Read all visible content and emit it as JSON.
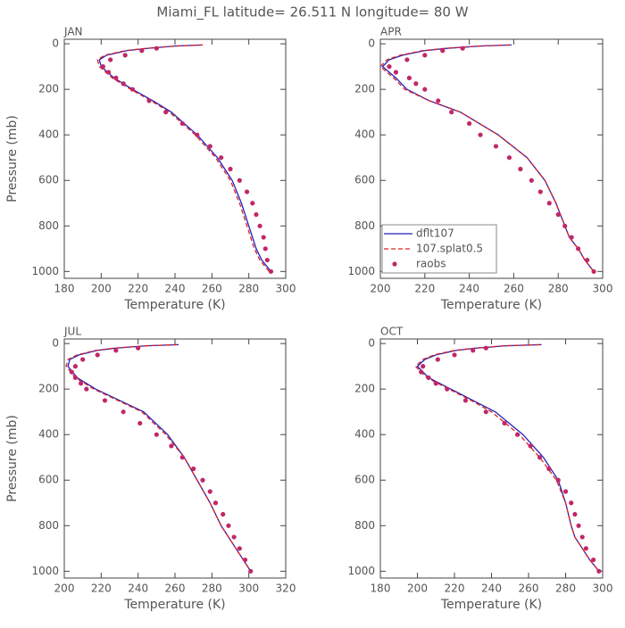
{
  "title": "Miami_FL  latitude= 26.511 N longitude= 80 W",
  "chart_data": [
    {
      "type": "line",
      "title": "JAN",
      "xlabel": "Temperature (K)",
      "ylabel": "Pressure (mb)",
      "xlim": [
        180,
        300
      ],
      "xticks": [
        180,
        200,
        220,
        240,
        260,
        280,
        300
      ],
      "ylim": [
        1030,
        -20
      ],
      "yticks": [
        0,
        200,
        400,
        600,
        800,
        1000
      ],
      "series": [
        {
          "color": "#2222bb",
          "style": "solid",
          "x": [
            255,
            240,
            225,
            214,
            203,
            199,
            200,
            207,
            217,
            228,
            238,
            252,
            263,
            271,
            276,
            280,
            282,
            284,
            287,
            292
          ],
          "values": [
            5,
            10,
            20,
            30,
            50,
            70,
            100,
            150,
            200,
            250,
            300,
            400,
            500,
            600,
            700,
            800,
            850,
            900,
            950,
            1000
          ]
        },
        {
          "color": "#e02020",
          "style": "dashed",
          "x": [
            255,
            240,
            224,
            213,
            202,
            198,
            199,
            206,
            216,
            227,
            237,
            251,
            262,
            270,
            275,
            279,
            281,
            283,
            286,
            291
          ],
          "values": [
            5,
            10,
            20,
            30,
            50,
            70,
            100,
            150,
            200,
            250,
            300,
            400,
            500,
            600,
            700,
            800,
            850,
            900,
            950,
            1000
          ]
        },
        {
          "color": "#c02868",
          "style": "markers",
          "x": [
            230,
            222,
            213,
            205,
            201,
            204,
            208,
            212,
            217,
            226,
            235,
            244,
            252,
            259,
            265,
            270,
            275,
            279,
            282,
            284,
            286,
            288,
            289,
            290,
            292
          ],
          "values": [
            20,
            30,
            50,
            70,
            100,
            125,
            150,
            175,
            200,
            250,
            300,
            350,
            400,
            450,
            500,
            550,
            600,
            650,
            700,
            750,
            800,
            850,
            900,
            950,
            1000
          ]
        }
      ]
    },
    {
      "type": "line",
      "title": "APR",
      "xlabel": "Temperature (K)",
      "legend": "lower left",
      "xlim": [
        200,
        300
      ],
      "xticks": [
        200,
        220,
        240,
        260,
        280,
        300
      ],
      "ylim": [
        1030,
        -20
      ],
      "yticks": [
        0,
        200,
        400,
        600,
        800,
        1000
      ],
      "series": [
        {
          "name": "dflt107",
          "color": "#2222bb",
          "style": "solid",
          "x": [
            259,
            245,
            230,
            220,
            210,
            204,
            201,
            207,
            212,
            222,
            236,
            253,
            266,
            274,
            279,
            283,
            285,
            289,
            292,
            296
          ],
          "values": [
            5,
            10,
            20,
            30,
            50,
            70,
            100,
            150,
            200,
            250,
            300,
            400,
            500,
            600,
            700,
            800,
            850,
            900,
            950,
            1000
          ]
        },
        {
          "name": "107.splat0.5",
          "color": "#e02020",
          "style": "dashed",
          "x": [
            258,
            244,
            229,
            219,
            209,
            203,
            200,
            206,
            211,
            222,
            236,
            253,
            266,
            274,
            279,
            283,
            285,
            289,
            292,
            296
          ],
          "values": [
            5,
            10,
            20,
            30,
            50,
            70,
            100,
            150,
            200,
            250,
            300,
            400,
            500,
            600,
            700,
            800,
            850,
            900,
            950,
            1000
          ]
        },
        {
          "name": "raobs",
          "color": "#c02868",
          "style": "markers",
          "x": [
            237,
            228,
            220,
            212,
            204,
            207,
            213,
            216,
            220,
            226,
            232,
            240,
            245,
            252,
            258,
            263,
            268,
            272,
            276,
            280,
            283,
            286,
            289,
            293,
            296
          ],
          "values": [
            20,
            30,
            50,
            70,
            100,
            125,
            150,
            175,
            200,
            250,
            300,
            350,
            400,
            450,
            500,
            550,
            600,
            650,
            700,
            750,
            800,
            850,
            900,
            950,
            1000
          ]
        }
      ]
    },
    {
      "type": "line",
      "title": "JUL",
      "xlabel": "Temperature (K)",
      "ylabel": "Pressure (mb)",
      "xlim": [
        200,
        320
      ],
      "xticks": [
        200,
        220,
        240,
        260,
        280,
        300,
        320
      ],
      "ylim": [
        1030,
        -20
      ],
      "yticks": [
        0,
        200,
        400,
        600,
        800,
        1000
      ],
      "series": [
        {
          "color": "#2222bb",
          "style": "solid",
          "x": [
            262,
            245,
            228,
            218,
            208,
            203,
            202,
            207,
            217,
            230,
            243,
            256,
            265,
            272,
            279,
            285,
            289,
            293,
            297,
            301
          ],
          "values": [
            5,
            10,
            20,
            30,
            50,
            70,
            100,
            150,
            200,
            250,
            300,
            400,
            500,
            600,
            700,
            800,
            850,
            900,
            950,
            1000
          ]
        },
        {
          "color": "#e02020",
          "style": "dashed",
          "x": [
            261,
            244,
            227,
            217,
            207,
            202,
            201,
            206,
            216,
            229,
            242,
            255,
            265,
            272,
            279,
            285,
            289,
            293,
            297,
            301
          ],
          "values": [
            5,
            10,
            20,
            30,
            50,
            70,
            100,
            150,
            200,
            250,
            300,
            400,
            500,
            600,
            700,
            800,
            850,
            900,
            950,
            1000
          ]
        },
        {
          "color": "#c02868",
          "style": "markers",
          "x": [
            240,
            228,
            218,
            210,
            206,
            204,
            206,
            209,
            212,
            222,
            232,
            241,
            250,
            258,
            264,
            270,
            275,
            279,
            282,
            286,
            289,
            292,
            295,
            298,
            301
          ],
          "values": [
            20,
            30,
            50,
            70,
            100,
            125,
            150,
            175,
            200,
            250,
            300,
            350,
            400,
            450,
            500,
            550,
            600,
            650,
            700,
            750,
            800,
            850,
            900,
            950,
            1000
          ]
        }
      ]
    },
    {
      "type": "line",
      "title": "OCT",
      "xlabel": "Temperature (K)",
      "xlim": [
        180,
        300
      ],
      "xticks": [
        180,
        200,
        220,
        240,
        260,
        280,
        300
      ],
      "ylim": [
        1030,
        -20
      ],
      "yticks": [
        0,
        200,
        400,
        600,
        800,
        1000
      ],
      "series": [
        {
          "color": "#2222bb",
          "style": "solid",
          "x": [
            267,
            248,
            232,
            221,
            210,
            204,
            200,
            206,
            218,
            230,
            242,
            257,
            268,
            276,
            280,
            283,
            285,
            289,
            293,
            298
          ],
          "values": [
            5,
            10,
            20,
            30,
            50,
            70,
            100,
            150,
            200,
            250,
            300,
            400,
            500,
            600,
            700,
            800,
            850,
            900,
            950,
            1000
          ]
        },
        {
          "color": "#e02020",
          "style": "dashed",
          "x": [
            266,
            247,
            231,
            220,
            209,
            203,
            199,
            205,
            217,
            229,
            240,
            255,
            266,
            275,
            280,
            283,
            285,
            289,
            293,
            298
          ],
          "values": [
            5,
            10,
            20,
            30,
            50,
            70,
            100,
            150,
            200,
            250,
            300,
            400,
            500,
            600,
            700,
            800,
            850,
            900,
            950,
            1000
          ]
        },
        {
          "color": "#c02868",
          "style": "markers",
          "x": [
            237,
            230,
            220,
            211,
            203,
            202,
            206,
            210,
            216,
            226,
            237,
            247,
            254,
            261,
            266,
            271,
            276,
            280,
            283,
            285,
            287,
            289,
            291,
            295,
            298
          ],
          "values": [
            20,
            30,
            50,
            70,
            100,
            125,
            150,
            175,
            200,
            250,
            300,
            350,
            400,
            450,
            500,
            550,
            600,
            650,
            700,
            750,
            800,
            850,
            900,
            950,
            1000
          ]
        }
      ]
    }
  ]
}
